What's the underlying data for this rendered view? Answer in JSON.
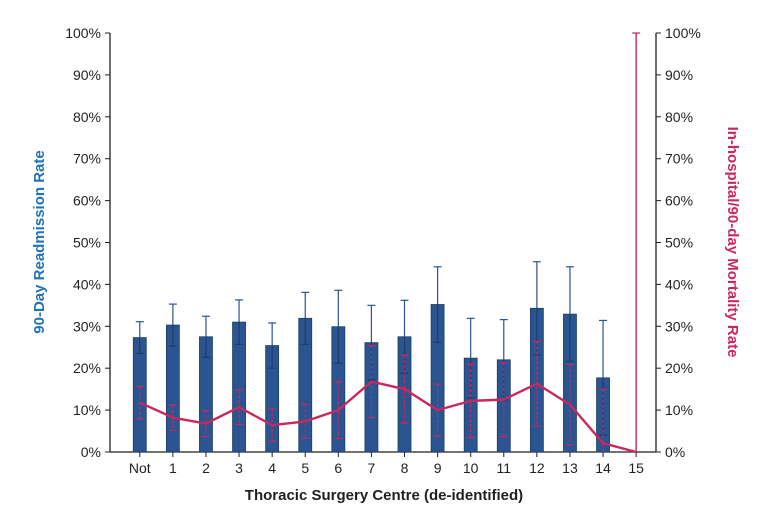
{
  "chart_data": {
    "type": "bar",
    "title": "",
    "xlabel": "Thoracic Surgery Centre (de-identified)",
    "ylabel_left": "90-Day Readmission Rate",
    "ylabel_right": "In-hospital/90-day Mortality Rate",
    "ylim": [
      0,
      100
    ],
    "y_ticks": [
      "0%",
      "10%",
      "20%",
      "30%",
      "40%",
      "50%",
      "60%",
      "70%",
      "80%",
      "90%",
      "100%"
    ],
    "categories": [
      "Not",
      "1",
      "2",
      "3",
      "4",
      "5",
      "6",
      "7",
      "8",
      "9",
      "10",
      "11",
      "12",
      "13",
      "14",
      "15"
    ],
    "series": [
      {
        "kind": "bar",
        "axis": "left",
        "values": [
          27.3,
          30.3,
          27.5,
          31.0,
          25.4,
          31.9,
          29.9,
          26.1,
          27.5,
          35.2,
          22.4,
          22.0,
          34.3,
          32.9,
          17.7,
          null
        ],
        "error_upper": [
          31.1,
          35.3,
          32.4,
          36.3,
          30.8,
          38.1,
          38.6,
          35.0,
          36.2,
          44.2,
          31.9,
          31.6,
          45.4,
          44.2,
          31.4,
          null
        ],
        "error_lower": [
          23.5,
          25.3,
          22.6,
          25.7,
          20.0,
          25.7,
          21.2,
          17.2,
          18.8,
          26.2,
          12.9,
          12.4,
          23.2,
          21.6,
          4.0,
          null
        ]
      },
      {
        "kind": "line",
        "axis": "right",
        "values": [
          11.8,
          8.2,
          6.8,
          10.7,
          6.4,
          7.3,
          10.0,
          16.8,
          15.0,
          10.0,
          12.2,
          12.5,
          16.3,
          11.3,
          2.1,
          0
        ],
        "error_upper": [
          15.6,
          11.2,
          9.9,
          14.8,
          10.3,
          11.4,
          16.8,
          25.4,
          23.1,
          16.2,
          21.0,
          21.3,
          26.4,
          20.9,
          14.9,
          100
        ],
        "error_lower": [
          7.9,
          5.2,
          3.7,
          6.6,
          2.5,
          3.3,
          3.2,
          8.2,
          6.9,
          3.8,
          3.4,
          3.7,
          6.2,
          1.7,
          0,
          0
        ]
      }
    ],
    "colors": {
      "bar_fill": "#2a5590",
      "bar_stroke": "#1d3d6b",
      "bar_error": "#2a5590",
      "line": "#c8285f",
      "left_title": "#1f73b7",
      "right_title": "#c8285f",
      "axis": "#231f20",
      "text": "#231f20"
    },
    "grid": false,
    "legend": "none"
  }
}
